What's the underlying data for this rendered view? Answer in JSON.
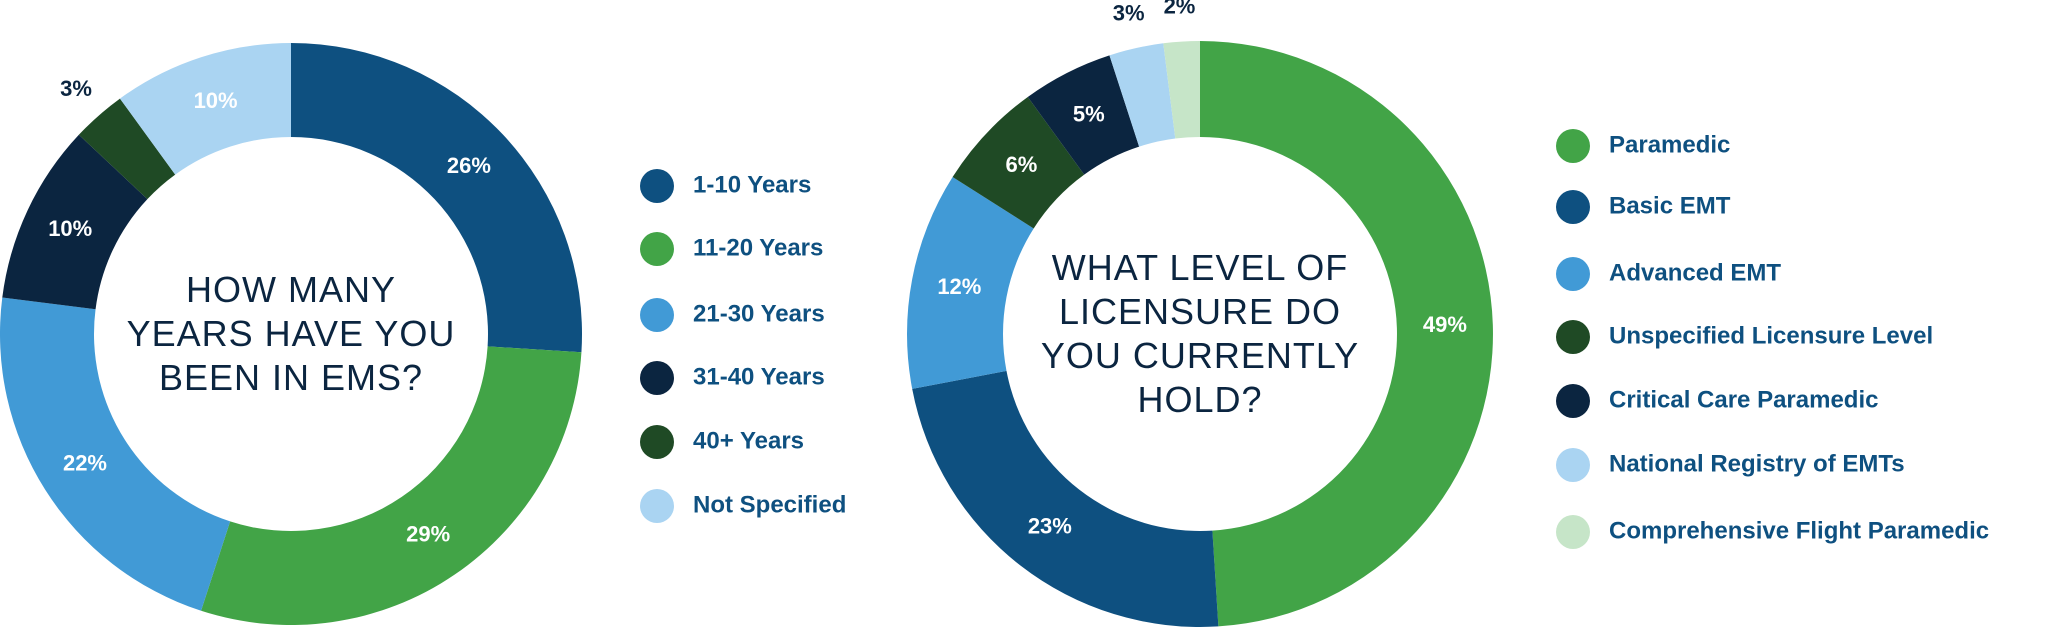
{
  "chart_data": [
    {
      "type": "pie",
      "title": "HOW MANY YEARS HAVE YOU BEEN IN EMS?",
      "categories": [
        "1-10 Years",
        "11-20 Years",
        "21-30 Years",
        "31-40 Years",
        "40+ Years",
        "Not Specified"
      ],
      "values": [
        26,
        29,
        22,
        10,
        3,
        10
      ],
      "value_labels": [
        "26%",
        "29%",
        "22%",
        "10%",
        "3%",
        "10%"
      ],
      "colors": [
        "#0e5080",
        "#42a447",
        "#419ad6",
        "#0b2540",
        "#1f4a25",
        "#aad4f2"
      ]
    },
    {
      "type": "pie",
      "title": "WHAT LEVEL OF LICENSURE DO YOU CURRENTLY HOLD?",
      "categories": [
        "Paramedic",
        "Basic EMT",
        "Advanced EMT",
        "Unspecified Licensure Level",
        "Critical Care Paramedic",
        "National Registry of EMTs",
        "Comprehensive Flight Paramedic"
      ],
      "values": [
        49,
        23,
        12,
        6,
        5,
        3,
        2
      ],
      "value_labels": [
        "49%",
        "23%",
        "12%",
        "6%",
        "5%",
        "3%",
        "2%"
      ],
      "colors": [
        "#42a447",
        "#0e5080",
        "#419ad6",
        "#1f4a25",
        "#0b2540",
        "#aad4f2",
        "#c6e5c8"
      ]
    }
  ]
}
